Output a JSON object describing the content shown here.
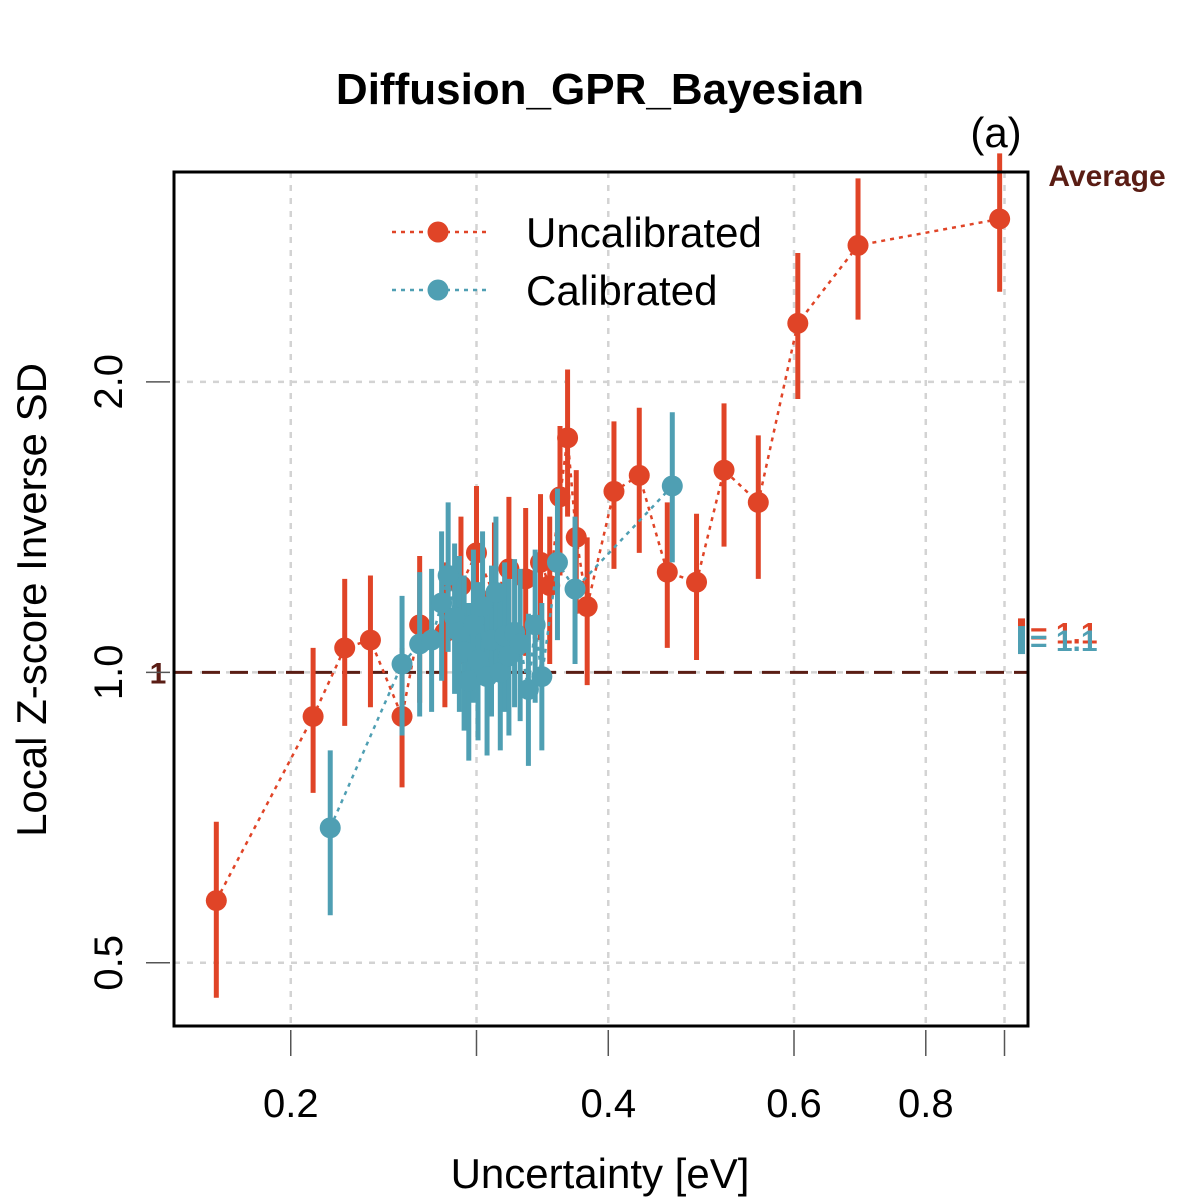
{
  "chart_data": {
    "type": "scatter",
    "title": "Diffusion_GPR_Bayesian",
    "panel_label": "(a)",
    "xlabel": "Uncertainty [eV]",
    "ylabel": "Local Z-score Inverse SD",
    "x_scale": "log",
    "y_scale": "log",
    "xlim": [
      0.155,
      1.0
    ],
    "ylim": [
      0.43,
      3.3
    ],
    "x_ticks": [
      0.2,
      0.4,
      0.6,
      0.8
    ],
    "x_tick_labels": [
      "0.2",
      "0.4",
      "0.6",
      "0.8"
    ],
    "x_minor_ticks": [
      0.3,
      0.95
    ],
    "y_ticks": [
      0.5,
      1.0,
      2.0
    ],
    "y_tick_labels": [
      "0.5",
      "1.0",
      "2.0"
    ],
    "grid": true,
    "reference_line": {
      "y": 1.0,
      "label": "1",
      "color": "#5a1d14"
    },
    "average_label": "Average",
    "average_color": "#5a1d14",
    "legend_position": "top-center",
    "series": [
      {
        "name": "Uncalibrated",
        "color": "#e04427",
        "average_value": 1.1,
        "average_label": "1.1",
        "points": [
          {
            "x": 0.17,
            "y": 0.58,
            "lo": 0.46,
            "hi": 0.7
          },
          {
            "x": 0.21,
            "y": 0.9,
            "lo": 0.75,
            "hi": 1.06
          },
          {
            "x": 0.225,
            "y": 1.06,
            "lo": 0.88,
            "hi": 1.25
          },
          {
            "x": 0.238,
            "y": 1.08,
            "lo": 0.92,
            "hi": 1.26
          },
          {
            "x": 0.255,
            "y": 0.9,
            "lo": 0.76,
            "hi": 1.06
          },
          {
            "x": 0.265,
            "y": 1.12,
            "lo": 0.93,
            "hi": 1.32
          },
          {
            "x": 0.28,
            "y": 1.1,
            "lo": 0.92,
            "hi": 1.3
          },
          {
            "x": 0.29,
            "y": 1.23,
            "lo": 1.02,
            "hi": 1.45
          },
          {
            "x": 0.3,
            "y": 1.33,
            "lo": 1.1,
            "hi": 1.56
          },
          {
            "x": 0.312,
            "y": 1.2,
            "lo": 1.0,
            "hi": 1.43
          },
          {
            "x": 0.322,
            "y": 1.28,
            "lo": 1.07,
            "hi": 1.52
          },
          {
            "x": 0.334,
            "y": 1.25,
            "lo": 1.04,
            "hi": 1.48
          },
          {
            "x": 0.345,
            "y": 1.3,
            "lo": 1.08,
            "hi": 1.53
          },
          {
            "x": 0.352,
            "y": 1.23,
            "lo": 1.02,
            "hi": 1.45
          },
          {
            "x": 0.36,
            "y": 1.52,
            "lo": 1.26,
            "hi": 1.8
          },
          {
            "x": 0.366,
            "y": 1.75,
            "lo": 1.45,
            "hi": 2.06
          },
          {
            "x": 0.373,
            "y": 1.38,
            "lo": 1.15,
            "hi": 1.62
          },
          {
            "x": 0.382,
            "y": 1.17,
            "lo": 0.97,
            "hi": 1.38
          },
          {
            "x": 0.405,
            "y": 1.54,
            "lo": 1.28,
            "hi": 1.82
          },
          {
            "x": 0.428,
            "y": 1.6,
            "lo": 1.33,
            "hi": 1.88
          },
          {
            "x": 0.455,
            "y": 1.27,
            "lo": 1.06,
            "hi": 1.5
          },
          {
            "x": 0.485,
            "y": 1.24,
            "lo": 1.03,
            "hi": 1.46
          },
          {
            "x": 0.515,
            "y": 1.62,
            "lo": 1.35,
            "hi": 1.9
          },
          {
            "x": 0.555,
            "y": 1.5,
            "lo": 1.25,
            "hi": 1.76
          },
          {
            "x": 0.605,
            "y": 2.3,
            "lo": 1.92,
            "hi": 2.72
          },
          {
            "x": 0.69,
            "y": 2.77,
            "lo": 2.32,
            "hi": 3.25
          },
          {
            "x": 0.94,
            "y": 2.95,
            "lo": 2.48,
            "hi": 3.45
          }
        ]
      },
      {
        "name": "Calibrated",
        "color": "#4f9fb3",
        "average_value": 1.08,
        "average_label": "1.1",
        "points": [
          {
            "x": 0.218,
            "y": 0.69,
            "lo": 0.56,
            "hi": 0.83
          },
          {
            "x": 0.255,
            "y": 1.02,
            "lo": 0.86,
            "hi": 1.2
          },
          {
            "x": 0.265,
            "y": 1.07,
            "lo": 0.9,
            "hi": 1.27
          },
          {
            "x": 0.272,
            "y": 1.08,
            "lo": 0.91,
            "hi": 1.28
          },
          {
            "x": 0.278,
            "y": 1.18,
            "lo": 0.98,
            "hi": 1.4
          },
          {
            "x": 0.282,
            "y": 1.26,
            "lo": 1.05,
            "hi": 1.5
          },
          {
            "x": 0.286,
            "y": 1.14,
            "lo": 0.95,
            "hi": 1.36
          },
          {
            "x": 0.289,
            "y": 1.1,
            "lo": 0.91,
            "hi": 1.32
          },
          {
            "x": 0.292,
            "y": 1.05,
            "lo": 0.87,
            "hi": 1.26
          },
          {
            "x": 0.295,
            "y": 0.98,
            "lo": 0.81,
            "hi": 1.18
          },
          {
            "x": 0.298,
            "y": 1.12,
            "lo": 0.93,
            "hi": 1.34
          },
          {
            "x": 0.301,
            "y": 1.03,
            "lo": 0.85,
            "hi": 1.24
          },
          {
            "x": 0.304,
            "y": 1.17,
            "lo": 0.97,
            "hi": 1.4
          },
          {
            "x": 0.307,
            "y": 0.99,
            "lo": 0.82,
            "hi": 1.19
          },
          {
            "x": 0.31,
            "y": 1.08,
            "lo": 0.9,
            "hi": 1.29
          },
          {
            "x": 0.313,
            "y": 1.21,
            "lo": 1.0,
            "hi": 1.45
          },
          {
            "x": 0.316,
            "y": 1.0,
            "lo": 0.83,
            "hi": 1.2
          },
          {
            "x": 0.319,
            "y": 1.09,
            "lo": 0.91,
            "hi": 1.3
          },
          {
            "x": 0.322,
            "y": 1.04,
            "lo": 0.86,
            "hi": 1.25
          },
          {
            "x": 0.326,
            "y": 1.1,
            "lo": 0.92,
            "hi": 1.31
          },
          {
            "x": 0.33,
            "y": 1.07,
            "lo": 0.89,
            "hi": 1.28
          },
          {
            "x": 0.336,
            "y": 0.96,
            "lo": 0.8,
            "hi": 1.15
          },
          {
            "x": 0.341,
            "y": 1.12,
            "lo": 0.93,
            "hi": 1.34
          },
          {
            "x": 0.346,
            "y": 0.99,
            "lo": 0.83,
            "hi": 1.18
          },
          {
            "x": 0.358,
            "y": 1.3,
            "lo": 1.08,
            "hi": 1.55
          },
          {
            "x": 0.372,
            "y": 1.22,
            "lo": 1.02,
            "hi": 1.45
          },
          {
            "x": 0.46,
            "y": 1.56,
            "lo": 1.3,
            "hi": 1.86
          }
        ]
      }
    ]
  }
}
